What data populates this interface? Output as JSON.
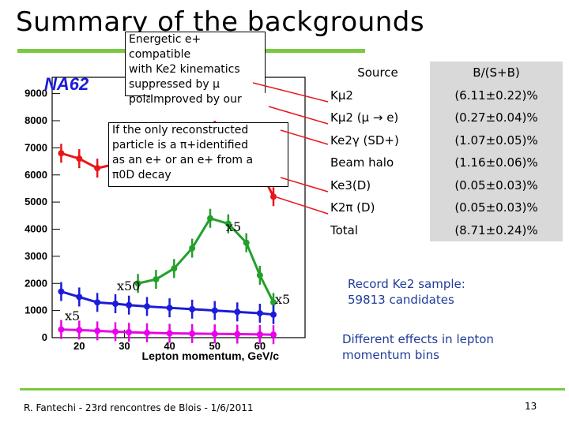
{
  "slide": {
    "title": "Summary of the backgrounds",
    "footer": "R. Fantechi - 23rd rencontres de Blois - 1/6/2011",
    "page_number": "13"
  },
  "callouts": {
    "energetic": [
      "Energetic e+ compatible",
      "with Ke2 kinematics",
      "suppressed by μ",
      "polarization effects"
    ],
    "improved": "Improved by our",
    "reconstructed": [
      "If the only reconstructed",
      "particle is a π+identified",
      "as an e+ or an e+ from a",
      "π0D decay"
    ]
  },
  "table": {
    "header": {
      "source": "Source",
      "value": "B/(S+B)"
    },
    "rows": [
      {
        "source": "Kμ2",
        "value": "(6.11±0.22)%"
      },
      {
        "source": "Kμ2 (μ → e)",
        "value": "(0.27±0.04)%"
      },
      {
        "source": "Ke2γ (SD+)",
        "value": "(1.07±0.05)%"
      },
      {
        "source": "Beam halo",
        "value": "(1.16±0.06)%"
      },
      {
        "source": "Ke3(D)",
        "value": "(0.05±0.03)%"
      },
      {
        "source": "K2π (D)",
        "value": "(0.05±0.03)%"
      },
      {
        "source": "Total",
        "value": "(8.71±0.24)%"
      }
    ]
  },
  "notes": {
    "record": [
      "Record Ke2 sample:",
      "59813 candidates"
    ],
    "different": [
      "Different effects in lepton",
      "momentum bins"
    ]
  },
  "chart_data": {
    "type": "line",
    "logo": "NA62",
    "xlabel": "Lepton momentum, GeV/c",
    "x_ticks": [
      "20",
      "30",
      "40",
      "50",
      "60"
    ],
    "y_ticks": [
      "0",
      "1000",
      "2000",
      "3000",
      "4000",
      "5000",
      "6000",
      "7000",
      "8000",
      "9000"
    ],
    "xlim": [
      14,
      70
    ],
    "ylim": [
      0,
      9600
    ],
    "grid": false,
    "annotations": [
      "x5",
      "x50",
      "x5",
      "x5"
    ],
    "colors": {
      "candidates": "#e8161a",
      "green_series": "#22a02a",
      "blue_series": "#1b1bd8",
      "magenta_series": "#e800e8",
      "axis": "#000000"
    },
    "series": [
      {
        "color": "#e8161a",
        "x": [
          16,
          20,
          24,
          28,
          30,
          35,
          40,
          45,
          50,
          55,
          60,
          63
        ],
        "y": [
          6800,
          6600,
          6250,
          6400,
          6500,
          6700,
          7000,
          7400,
          7650,
          7300,
          6200,
          5200
        ]
      },
      {
        "color": "#22a02a",
        "x": [
          33,
          37,
          41,
          45,
          49,
          53,
          57,
          60,
          63
        ],
        "y": [
          2000,
          2150,
          2550,
          3300,
          4400,
          4200,
          3500,
          2300,
          1300
        ]
      },
      {
        "color": "#1b1bd8",
        "x": [
          16,
          20,
          24,
          28,
          31,
          35,
          40,
          45,
          50,
          55,
          60,
          63
        ],
        "y": [
          1700,
          1500,
          1300,
          1250,
          1200,
          1150,
          1100,
          1050,
          1000,
          950,
          900,
          850
        ]
      },
      {
        "color": "#e800e8",
        "x": [
          16,
          20,
          24,
          28,
          31,
          35,
          40,
          45,
          50,
          55,
          60,
          63
        ],
        "y": [
          300,
          280,
          250,
          220,
          200,
          180,
          160,
          150,
          140,
          130,
          120,
          110
        ]
      }
    ]
  }
}
